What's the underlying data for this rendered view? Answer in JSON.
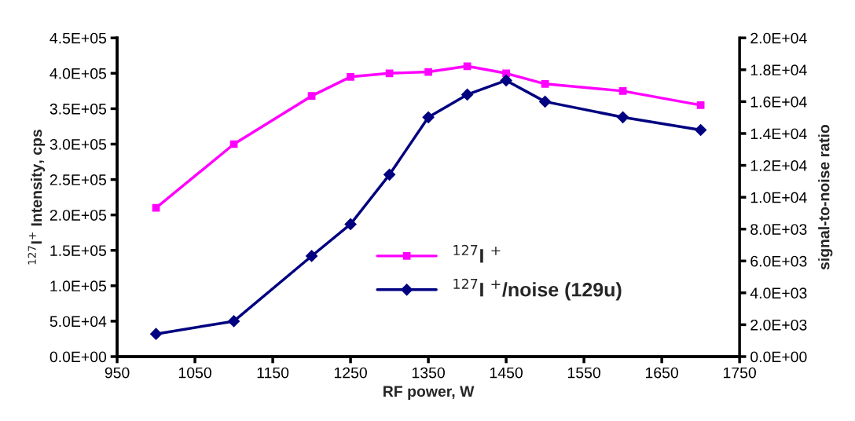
{
  "chart_data": {
    "type": "line",
    "xlabel": "RF power, W",
    "ylabel": "$^{127}$I$^{+}$ Intensity, cps",
    "y2label": "signal-to-noise ratio",
    "x": [
      1000,
      1100,
      1200,
      1250,
      1300,
      1350,
      1400,
      1450,
      1500,
      1600,
      1700
    ],
    "series": [
      {
        "name": "$^{127}$I $^{+}$",
        "color": "#ff00ff",
        "marker": "square",
        "values": [
          210000,
          300000,
          368000,
          395000,
          400000,
          402000,
          410000,
          400000,
          385000,
          375000,
          355000
        ]
      },
      {
        "name": "$^{127}$I $^{+}$/noise (129u)",
        "color": "#000080",
        "marker": "diamond",
        "axis": "y2",
        "values": [
          1420,
          2220,
          6310,
          8310,
          11420,
          15020,
          16440,
          17330,
          16000,
          15020,
          14220
        ]
      }
    ],
    "xlim": [
      950,
      1750
    ],
    "xticks": [
      950,
      1050,
      1150,
      1250,
      1350,
      1450,
      1550,
      1650,
      1750
    ],
    "ylim": [
      0,
      450000
    ],
    "yticks": [
      {
        "value": 0,
        "label": "0.0E+00"
      },
      {
        "value": 50000,
        "label": "5.0E+04"
      },
      {
        "value": 100000,
        "label": "1.0E+05"
      },
      {
        "value": 150000,
        "label": "1.5E+05"
      },
      {
        "value": 200000,
        "label": "2.0E+05"
      },
      {
        "value": 250000,
        "label": "2.5E+05"
      },
      {
        "value": 300000,
        "label": "3.0E+05"
      },
      {
        "value": 350000,
        "label": "3.5E+05"
      },
      {
        "value": 400000,
        "label": "4.0E+05"
      },
      {
        "value": 450000,
        "label": "4.5E+05"
      }
    ],
    "y2lim": [
      0,
      20000
    ],
    "y2ticks": [
      {
        "value": 0,
        "label": "0.0E+00"
      },
      {
        "value": 2000,
        "label": "2.0E+03"
      },
      {
        "value": 4000,
        "label": "4.0E+03"
      },
      {
        "value": 6000,
        "label": "6.0E+03"
      },
      {
        "value": 8000,
        "label": "8.0E+03"
      },
      {
        "value": 10000,
        "label": "1.0E+04"
      },
      {
        "value": 12000,
        "label": "1.2E+04"
      },
      {
        "value": 14000,
        "label": "1.4E+04"
      },
      {
        "value": 16000,
        "label": "1.6E+04"
      },
      {
        "value": 18000,
        "label": "1.8E+04"
      },
      {
        "value": 20000,
        "label": "2.0E+04"
      }
    ],
    "grid": false,
    "legend": "bottom right",
    "line_style": "solid"
  }
}
